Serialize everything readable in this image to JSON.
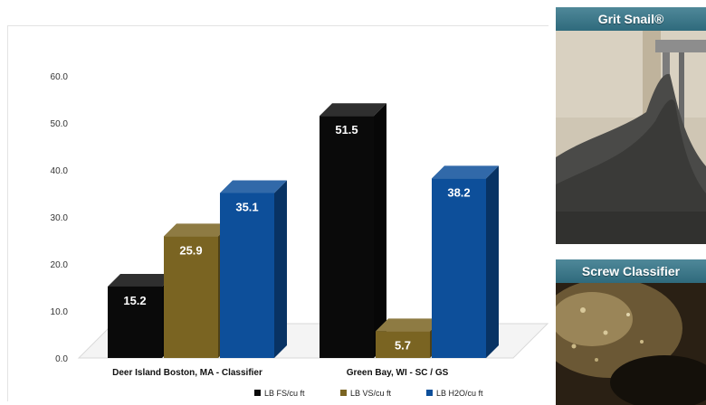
{
  "chart_data": {
    "type": "bar",
    "categories": [
      "Deer Island Boston, MA - Classifier",
      "Green Bay, WI - SC / GS"
    ],
    "series": [
      {
        "name": "LB FS/cu ft",
        "values": [
          15.2,
          51.5
        ],
        "color": "#0a0a0a"
      },
      {
        "name": "LB VS/cu ft",
        "values": [
          25.9,
          5.7
        ],
        "color": "#7a6422"
      },
      {
        "name": "LB H2O/cu ft",
        "values": [
          35.1,
          38.2
        ],
        "color": "#0d4f9a"
      }
    ],
    "data_labels": [
      [
        "15.2",
        "51.5"
      ],
      [
        "25.9",
        "5.7"
      ],
      [
        "35.1",
        "38.2"
      ]
    ],
    "yticks": [
      "0.0",
      "10.0",
      "20.0",
      "30.0",
      "40.0",
      "50.0",
      "60.0"
    ],
    "ylim": [
      0,
      60
    ],
    "title": "",
    "xlabel": "",
    "ylabel": "",
    "legend_position": "bottom",
    "grid": false,
    "style": "3d"
  },
  "photos": {
    "grit_snail": {
      "title": "Grit Snail®"
    },
    "screw_classifier": {
      "title": "Screw Classifier"
    }
  }
}
